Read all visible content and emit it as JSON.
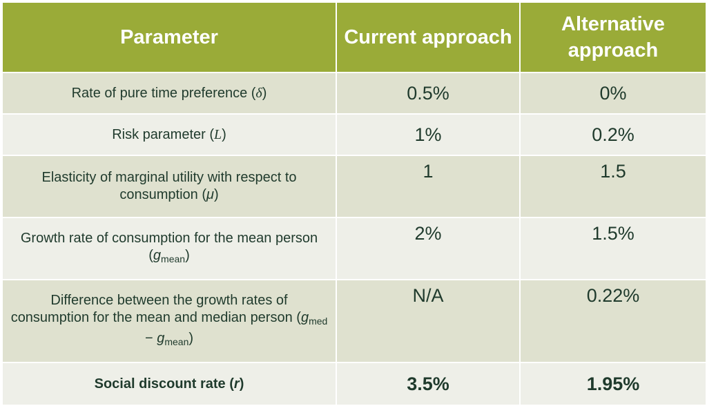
{
  "header": {
    "parameter": "Parameter",
    "current": "Current approach",
    "alternative": "Alternative approach"
  },
  "rows": [
    {
      "label": "Rate of pure time preference (",
      "sym": "δ",
      "close": ")",
      "current": "0.5%",
      "alternative": "0%"
    },
    {
      "label": "Risk parameter (",
      "sym": "L",
      "close": ")",
      "current": "1%",
      "alternative": "0.2%"
    },
    {
      "label": "Elasticity of marginal utility with respect to consumption (",
      "sym": "μ",
      "close": ")",
      "current": "1",
      "alternative": "1.5"
    },
    {
      "label": "Growth rate of consumption for the mean person (",
      "sym": "g",
      "sub": "mean",
      "close": ")",
      "current": "2%",
      "alternative": "1.5%"
    },
    {
      "label": "Difference between the growth rates of consumption for the mean and median person (",
      "sym": "g",
      "sub": "med",
      "minus": " − ",
      "sym2": "g",
      "sub2": "mean",
      "close": ")",
      "current": "N/A",
      "alternative": "0.22%"
    }
  ],
  "footer": {
    "label": "Social discount rate (",
    "sym": "r",
    "close": ")",
    "current": "3.5%",
    "alternative": "1.95%"
  },
  "colors": {
    "header": "#9aab38",
    "row_odd": "#dfe1cf",
    "row_even": "#eeefe8",
    "text": "#1f3a2c"
  }
}
